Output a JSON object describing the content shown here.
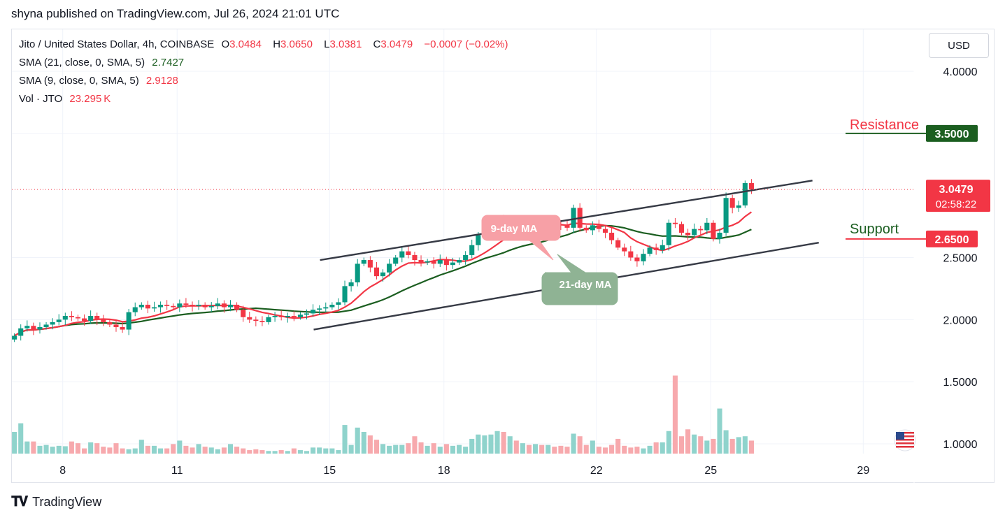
{
  "header": {
    "text": "shyna published on TradingView.com, Jul 26, 2024 21:01 UTC"
  },
  "legend": {
    "symbol": "Jito / United States Dollar, 4h, COINBASE",
    "o_label": "O",
    "o_value": "3.0484",
    "h_label": "H",
    "h_value": "3.0650",
    "l_label": "L",
    "l_value": "3.0381",
    "c_label": "C",
    "c_value": "3.0479",
    "change": "−0.0007 (−0.02%)",
    "sma21_label": "SMA (21, close, 0, SMA, 5)",
    "sma21_value": "2.7427",
    "sma9_label": "SMA (9, close, 0, SMA, 5)",
    "sma9_value": "2.9128",
    "vol_label": "Vol · JTO",
    "vol_value": "23.295 K"
  },
  "currency_button": "USD",
  "footer": {
    "logo": "TradingView"
  },
  "colors": {
    "up": "#089981",
    "down": "#f23645",
    "sma9": "#f23645",
    "sma21": "#1b5e20",
    "vol_up": "#8fd3cc",
    "vol_down": "#f7a9ad"
  },
  "chart_data": {
    "type": "candlestick",
    "title": "Jito / United States Dollar, 4h, COINBASE",
    "ylim": [
      0.95,
      4.15
    ],
    "y_ticks": [
      1.0,
      1.5,
      2.0,
      2.5,
      4.0
    ],
    "y_tick_labels": [
      "1.0000",
      "1.5000",
      "2.0000",
      "2.5000",
      "4.0000"
    ],
    "x_ticks": [
      {
        "label": "8",
        "t": 0
      },
      {
        "label": "11",
        "t": 18
      },
      {
        "label": "15",
        "t": 42
      },
      {
        "label": "18",
        "t": 60
      },
      {
        "label": "22",
        "t": 84
      },
      {
        "label": "25",
        "t": 102
      },
      {
        "label": "29",
        "t": 126
      }
    ],
    "t_start": -8,
    "t_end": 134,
    "price_closes": [
      1.87,
      1.93,
      1.95,
      1.92,
      1.94,
      1.96,
      1.98,
      2.0,
      2.03,
      2.02,
      2.01,
      1.99,
      2.03,
      2.0,
      1.98,
      1.96,
      1.94,
      1.92,
      2.06,
      2.1,
      2.12,
      2.09,
      2.1,
      2.12,
      2.11,
      2.1,
      2.13,
      2.12,
      2.11,
      2.12,
      2.1,
      2.11,
      2.13,
      2.1,
      2.12,
      2.08,
      2.02,
      2.0,
      1.99,
      1.98,
      2.02,
      2.03,
      2.02,
      2.03,
      2.02,
      2.04,
      2.05,
      2.08,
      2.09,
      2.1,
      2.12,
      2.14,
      2.27,
      2.3,
      2.45,
      2.48,
      2.42,
      2.35,
      2.38,
      2.45,
      2.5,
      2.55,
      2.52,
      2.48,
      2.46,
      2.47,
      2.45,
      2.48,
      2.44,
      2.46,
      2.48,
      2.52,
      2.6,
      2.68,
      2.73,
      2.75,
      2.8,
      2.77,
      2.78,
      2.75,
      2.77,
      2.75,
      2.77,
      2.75,
      2.78,
      2.77,
      2.76,
      2.74,
      2.9,
      2.74,
      2.72,
      2.76,
      2.73,
      2.7,
      2.64,
      2.58,
      2.55,
      2.5,
      2.47,
      2.53,
      2.58,
      2.56,
      2.6,
      2.78,
      2.77,
      2.7,
      2.68,
      2.73,
      2.72,
      2.78,
      2.65,
      2.7,
      2.98,
      2.9,
      2.92,
      3.1,
      3.05
    ],
    "volumes": [
      50,
      70,
      28,
      28,
      18,
      20,
      16,
      18,
      17,
      28,
      24,
      12,
      26,
      24,
      16,
      14,
      24,
      12,
      10,
      12,
      32,
      18,
      18,
      12,
      12,
      22,
      30,
      18,
      14,
      22,
      16,
      14,
      10,
      14,
      22,
      16,
      12,
      8,
      10,
      8,
      6,
      6,
      8,
      6,
      12,
      8,
      6,
      14,
      14,
      12,
      12,
      8,
      66,
      20,
      60,
      50,
      42,
      32,
      22,
      18,
      20,
      20,
      24,
      40,
      26,
      18,
      24,
      16,
      22,
      18,
      20,
      16,
      34,
      44,
      42,
      44,
      52,
      50,
      40,
      30,
      24,
      20,
      22,
      20,
      20,
      16,
      18,
      16,
      46,
      40,
      20,
      30,
      16,
      14,
      20,
      34,
      18,
      14,
      16,
      12,
      18,
      26,
      26,
      52,
      180,
      40,
      56,
      44,
      40,
      30,
      34,
      104,
      54,
      34,
      38,
      40,
      30
    ]
  },
  "annotations": {
    "ma9_label": "9-day MA",
    "ma21_label": "21-day MA",
    "resistance_label": "Resistance",
    "resistance_value": "3.5000",
    "support_label": "Support",
    "support_value": "2.6500",
    "current_price": "3.0479",
    "countdown": "02:58:22"
  }
}
